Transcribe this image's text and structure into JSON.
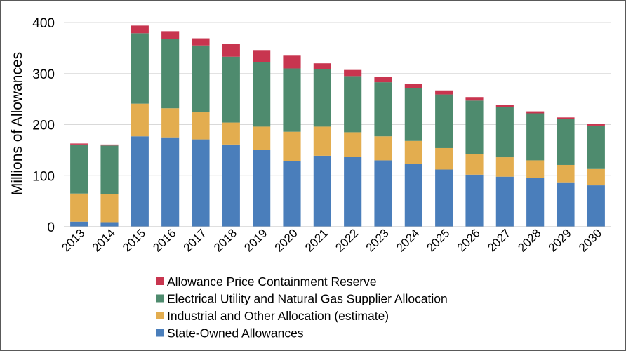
{
  "chart_data": {
    "type": "bar",
    "stacked": true,
    "title": "",
    "xlabel": "",
    "ylabel": "Millions of Allowances",
    "ylim": [
      0,
      400
    ],
    "yticks": [
      0,
      100,
      200,
      300,
      400
    ],
    "grid": true,
    "categories": [
      "2013",
      "2014",
      "2015",
      "2016",
      "2017",
      "2018",
      "2019",
      "2020",
      "2021",
      "2022",
      "2023",
      "2024",
      "2025",
      "2026",
      "2027",
      "2028",
      "2029",
      "2030"
    ],
    "series": [
      {
        "name": "State-Owned Allowances",
        "color": "#4a7ebb",
        "values": [
          10,
          9,
          177,
          175,
          171,
          161,
          151,
          128,
          139,
          137,
          130,
          123,
          112,
          102,
          98,
          95,
          87,
          81
        ]
      },
      {
        "name": "Industrial and Other Allocation (estimate)",
        "color": "#e3ad4f",
        "values": [
          55,
          55,
          64,
          57,
          53,
          43,
          45,
          58,
          57,
          48,
          47,
          45,
          42,
          40,
          38,
          35,
          34,
          32
        ]
      },
      {
        "name": "Electrical Utility and Natural Gas Supplier Allocation",
        "color": "#4e8b6e",
        "values": [
          96,
          95,
          138,
          135,
          131,
          129,
          126,
          124,
          112,
          110,
          106,
          103,
          105,
          105,
          99,
          92,
          90,
          85
        ]
      },
      {
        "name": "Allowance Price Containment Reserve",
        "color": "#c8354f",
        "values": [
          2,
          2,
          15,
          16,
          14,
          25,
          24,
          25,
          12,
          12,
          11,
          9,
          8,
          7,
          4,
          4,
          3,
          3
        ]
      }
    ],
    "legend": {
      "placement": "bottom",
      "order": [
        "Allowance Price Containment Reserve",
        "Electrical Utility and Natural Gas Supplier Allocation",
        "Industrial and Other Allocation (estimate)",
        "State-Owned Allowances"
      ]
    },
    "colors": {
      "grid": "#d9d9d9",
      "axis": "#bfbfbf",
      "frame": "#595959"
    }
  }
}
